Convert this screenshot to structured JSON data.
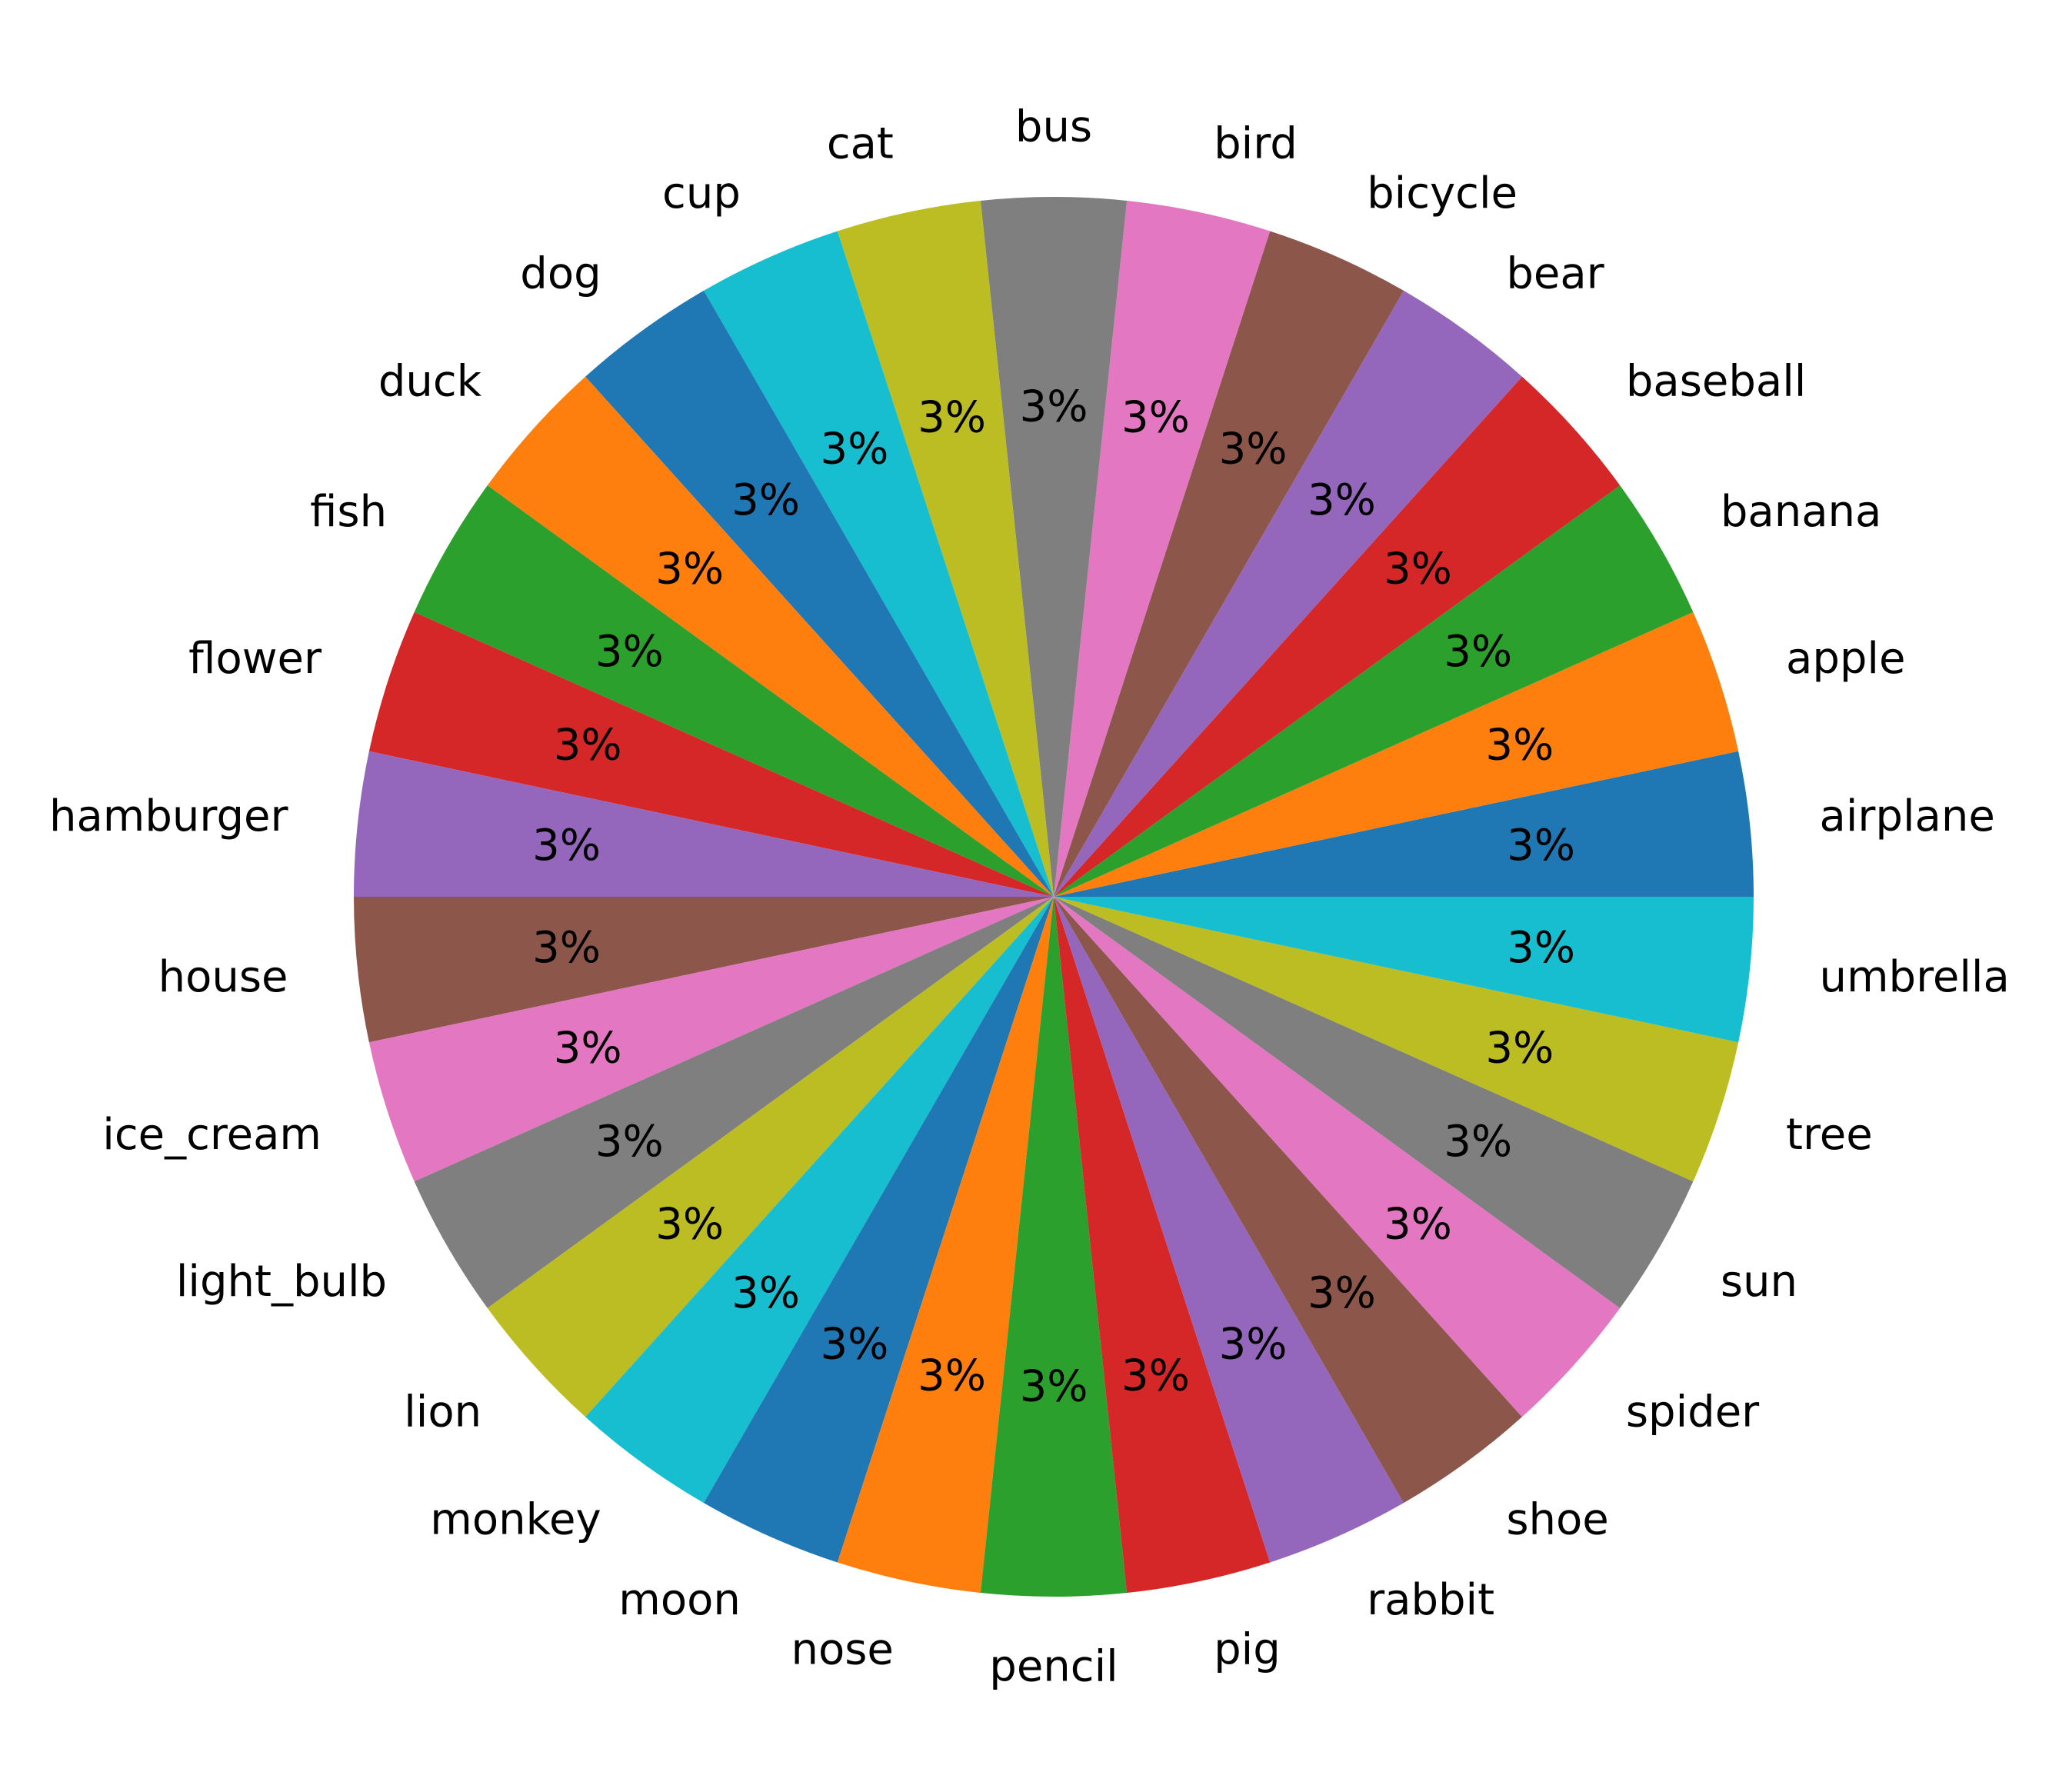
{
  "chart_data": {
    "type": "pie",
    "title": "",
    "start_angle_deg": 0,
    "direction": "counterclockwise",
    "colors": [
      "#1f77b4",
      "#ff7f0e",
      "#2ca02c",
      "#d62728",
      "#9467bd",
      "#8c564b",
      "#e377c2",
      "#7f7f7f",
      "#bcbd22",
      "#17becf"
    ],
    "slices": [
      {
        "label": "airplane",
        "value": 1,
        "pct_label": "3%"
      },
      {
        "label": "apple",
        "value": 1,
        "pct_label": "3%"
      },
      {
        "label": "banana",
        "value": 1,
        "pct_label": "3%"
      },
      {
        "label": "baseball",
        "value": 1,
        "pct_label": "3%"
      },
      {
        "label": "bear",
        "value": 1,
        "pct_label": "3%"
      },
      {
        "label": "bicycle",
        "value": 1,
        "pct_label": "3%"
      },
      {
        "label": "bird",
        "value": 1,
        "pct_label": "3%"
      },
      {
        "label": "bus",
        "value": 1,
        "pct_label": "3%"
      },
      {
        "label": "cat",
        "value": 1,
        "pct_label": "3%"
      },
      {
        "label": "cup",
        "value": 1,
        "pct_label": "3%"
      },
      {
        "label": "dog",
        "value": 1,
        "pct_label": "3%"
      },
      {
        "label": "duck",
        "value": 1,
        "pct_label": "3%"
      },
      {
        "label": "fish",
        "value": 1,
        "pct_label": "3%"
      },
      {
        "label": "flower",
        "value": 1,
        "pct_label": "3%"
      },
      {
        "label": "hamburger",
        "value": 1,
        "pct_label": "3%"
      },
      {
        "label": "house",
        "value": 1,
        "pct_label": "3%"
      },
      {
        "label": "ice_cream",
        "value": 1,
        "pct_label": "3%"
      },
      {
        "label": "light_bulb",
        "value": 1,
        "pct_label": "3%"
      },
      {
        "label": "lion",
        "value": 1,
        "pct_label": "3%"
      },
      {
        "label": "monkey",
        "value": 1,
        "pct_label": "3%"
      },
      {
        "label": "moon",
        "value": 1,
        "pct_label": "3%"
      },
      {
        "label": "nose",
        "value": 1,
        "pct_label": "3%"
      },
      {
        "label": "pencil",
        "value": 1,
        "pct_label": "3%"
      },
      {
        "label": "pig",
        "value": 1,
        "pct_label": "3%"
      },
      {
        "label": "rabbit",
        "value": 1,
        "pct_label": "3%"
      },
      {
        "label": "shoe",
        "value": 1,
        "pct_label": "3%"
      },
      {
        "label": "spider",
        "value": 1,
        "pct_label": "3%"
      },
      {
        "label": "sun",
        "value": 1,
        "pct_label": "3%"
      },
      {
        "label": "tree",
        "value": 1,
        "pct_label": "3%"
      },
      {
        "label": "umbrella",
        "value": 1,
        "pct_label": "3%"
      }
    ]
  }
}
